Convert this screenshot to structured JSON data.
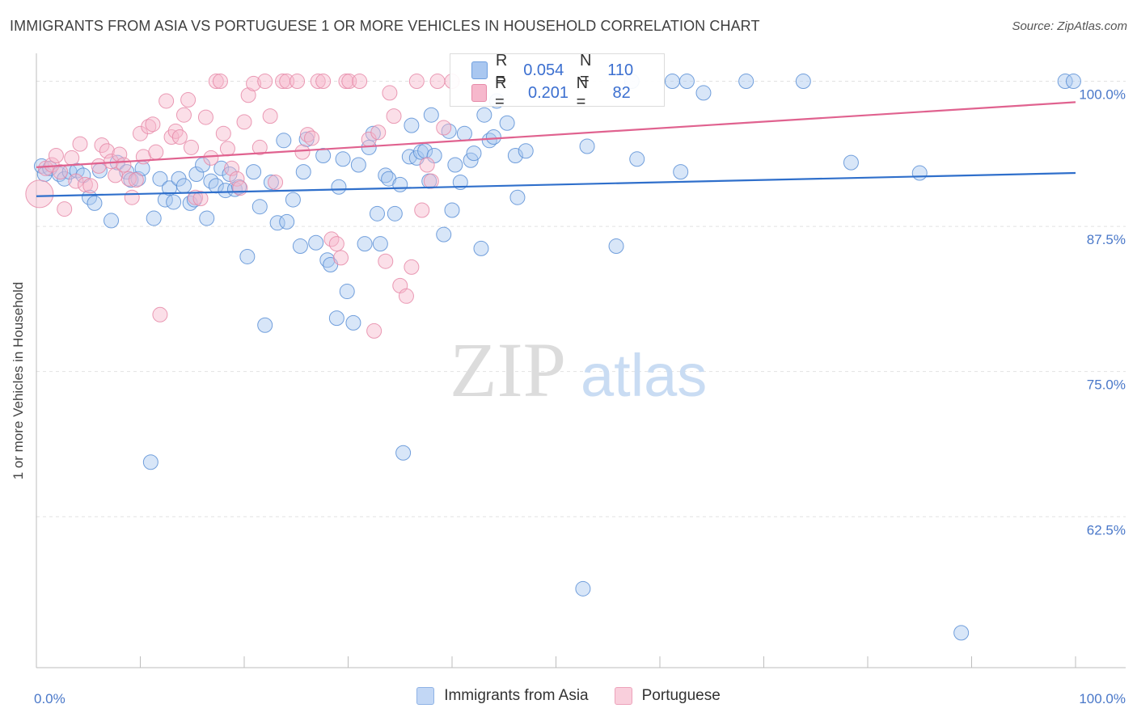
{
  "header": {
    "title": "IMMIGRANTS FROM ASIA VS PORTUGUESE 1 OR MORE VEHICLES IN HOUSEHOLD CORRELATION CHART",
    "source": "Source: ZipAtlas.com"
  },
  "watermark": {
    "zip": "ZIP",
    "atlas": "atlas"
  },
  "legend_stats": [
    {
      "r_label": "R =",
      "r_value": "0.054",
      "n_label": "N =",
      "n_value": "110",
      "color": "#a9c7f0"
    },
    {
      "r_label": "R =",
      "r_value": "0.201",
      "n_label": "N =",
      "n_value": "82",
      "color": "#f6b8cc"
    }
  ],
  "chart_data": {
    "type": "scatter",
    "title": "IMMIGRANTS FROM ASIA VS PORTUGUESE 1 OR MORE VEHICLES IN HOUSEHOLD CORRELATION CHART",
    "ylabel": "1 or more Vehicles in Household",
    "xlabel": "",
    "xlim": [
      0,
      100
    ],
    "ylim": [
      49.5,
      101.5
    ],
    "x_tick_labels": [
      "0.0%",
      "100.0%"
    ],
    "y_ticks": [
      62.5,
      75.0,
      87.5,
      100.0
    ],
    "y_tick_labels": [
      "62.5%",
      "75.0%",
      "87.5%",
      "100.0%"
    ],
    "grid": true,
    "legend_position": "bottom",
    "series": [
      {
        "name": "Immigrants from Asia",
        "color": "#a9c7f0",
        "edge": "#5b8fd6",
        "line_color": "#2f6fcb",
        "trend": [
          [
            0,
            90.1
          ],
          [
            100,
            92.1
          ]
        ],
        "points": [
          [
            0.5,
            92.7
          ],
          [
            0.8,
            92.0
          ],
          [
            1.3,
            92.5
          ],
          [
            2.2,
            92.0
          ],
          [
            2.7,
            91.6
          ],
          [
            3.2,
            92.2
          ],
          [
            3.9,
            92.3
          ],
          [
            4.5,
            91.9
          ],
          [
            5.1,
            90.0
          ],
          [
            5.6,
            89.5
          ],
          [
            6.1,
            92.3
          ],
          [
            7.2,
            88.0
          ],
          [
            7.8,
            93.0
          ],
          [
            8.7,
            92.2
          ],
          [
            9.1,
            91.5
          ],
          [
            9.8,
            91.6
          ],
          [
            10.2,
            92.5
          ],
          [
            11.0,
            67.2
          ],
          [
            11.3,
            88.2
          ],
          [
            11.9,
            91.6
          ],
          [
            12.4,
            89.8
          ],
          [
            12.8,
            90.8
          ],
          [
            13.2,
            89.6
          ],
          [
            13.7,
            91.6
          ],
          [
            14.2,
            91.0
          ],
          [
            14.8,
            89.5
          ],
          [
            15.2,
            89.8
          ],
          [
            15.4,
            92.0
          ],
          [
            16.0,
            92.8
          ],
          [
            16.4,
            88.2
          ],
          [
            16.8,
            91.4
          ],
          [
            17.3,
            91.0
          ],
          [
            17.8,
            92.5
          ],
          [
            18.2,
            90.6
          ],
          [
            18.6,
            92.0
          ],
          [
            19.1,
            90.7
          ],
          [
            19.5,
            90.9
          ],
          [
            20.3,
            84.9
          ],
          [
            20.9,
            92.2
          ],
          [
            21.5,
            89.2
          ],
          [
            22.0,
            79.0
          ],
          [
            22.6,
            91.3
          ],
          [
            23.2,
            87.8
          ],
          [
            23.8,
            94.9
          ],
          [
            24.1,
            87.9
          ],
          [
            24.7,
            89.8
          ],
          [
            25.4,
            85.8
          ],
          [
            25.7,
            92.2
          ],
          [
            26.0,
            95.0
          ],
          [
            26.9,
            86.1
          ],
          [
            27.6,
            93.6
          ],
          [
            28.0,
            84.6
          ],
          [
            28.3,
            84.2
          ],
          [
            28.9,
            79.6
          ],
          [
            29.1,
            90.9
          ],
          [
            29.5,
            93.3
          ],
          [
            29.9,
            81.9
          ],
          [
            30.5,
            79.2
          ],
          [
            31.0,
            92.8
          ],
          [
            31.6,
            86.0
          ],
          [
            32.0,
            94.3
          ],
          [
            32.4,
            95.5
          ],
          [
            32.8,
            88.6
          ],
          [
            33.1,
            86.0
          ],
          [
            33.6,
            91.9
          ],
          [
            33.9,
            91.6
          ],
          [
            34.5,
            88.6
          ],
          [
            35.0,
            91.1
          ],
          [
            35.3,
            68.0
          ],
          [
            35.9,
            93.5
          ],
          [
            36.1,
            96.2
          ],
          [
            36.6,
            93.4
          ],
          [
            37.0,
            93.9
          ],
          [
            37.4,
            94.0
          ],
          [
            37.8,
            91.4
          ],
          [
            38.0,
            97.1
          ],
          [
            38.3,
            93.6
          ],
          [
            39.2,
            86.8
          ],
          [
            39.7,
            95.7
          ],
          [
            40.0,
            88.9
          ],
          [
            40.3,
            92.8
          ],
          [
            40.8,
            91.3
          ],
          [
            41.2,
            95.5
          ],
          [
            41.8,
            93.2
          ],
          [
            42.1,
            93.8
          ],
          [
            42.8,
            85.6
          ],
          [
            43.1,
            97.1
          ],
          [
            43.6,
            94.9
          ],
          [
            44.0,
            95.2
          ],
          [
            44.3,
            98.3
          ],
          [
            45.3,
            96.4
          ],
          [
            46.1,
            93.6
          ],
          [
            46.3,
            90.0
          ],
          [
            47.1,
            94.0
          ],
          [
            52.6,
            56.3
          ],
          [
            53.0,
            94.4
          ],
          [
            55.8,
            85.8
          ],
          [
            57.3,
            100.0
          ],
          [
            57.8,
            93.3
          ],
          [
            61.2,
            100.0
          ],
          [
            62.0,
            92.2
          ],
          [
            62.6,
            100.0
          ],
          [
            64.2,
            99.0
          ],
          [
            68.3,
            100.0
          ],
          [
            73.8,
            100.0
          ],
          [
            78.4,
            93.0
          ],
          [
            85.0,
            92.1
          ],
          [
            89.0,
            52.5
          ],
          [
            99.0,
            100.0
          ],
          [
            99.8,
            100.0
          ]
        ]
      },
      {
        "name": "Portuguese",
        "color": "#f6b8cc",
        "edge": "#e68aa8",
        "line_color": "#e0628f",
        "trend": [
          [
            0,
            92.6
          ],
          [
            100,
            98.2
          ]
        ],
        "points": [
          [
            0.3,
            90.3
          ],
          [
            0.9,
            92.5
          ],
          [
            1.5,
            92.8
          ],
          [
            1.9,
            93.6
          ],
          [
            2.3,
            92.2
          ],
          [
            2.7,
            89.0
          ],
          [
            3.4,
            93.4
          ],
          [
            3.8,
            91.4
          ],
          [
            4.2,
            94.6
          ],
          [
            4.7,
            91.1
          ],
          [
            5.2,
            91.0
          ],
          [
            6.0,
            92.7
          ],
          [
            6.3,
            94.5
          ],
          [
            6.8,
            94.0
          ],
          [
            7.2,
            93.1
          ],
          [
            7.6,
            91.9
          ],
          [
            8.0,
            93.7
          ],
          [
            8.4,
            92.8
          ],
          [
            8.9,
            91.6
          ],
          [
            9.2,
            90.0
          ],
          [
            9.6,
            91.5
          ],
          [
            10.0,
            95.5
          ],
          [
            10.3,
            93.5
          ],
          [
            10.8,
            96.1
          ],
          [
            11.2,
            96.3
          ],
          [
            11.5,
            93.9
          ],
          [
            11.9,
            79.9
          ],
          [
            12.5,
            98.3
          ],
          [
            13.0,
            95.2
          ],
          [
            13.4,
            95.7
          ],
          [
            13.8,
            95.2
          ],
          [
            14.2,
            97.1
          ],
          [
            14.6,
            98.4
          ],
          [
            14.9,
            94.3
          ],
          [
            15.3,
            90.0
          ],
          [
            15.8,
            89.9
          ],
          [
            16.3,
            96.9
          ],
          [
            16.8,
            93.4
          ],
          [
            17.3,
            100.0
          ],
          [
            17.7,
            100.0
          ],
          [
            18.0,
            95.5
          ],
          [
            18.4,
            94.2
          ],
          [
            18.8,
            92.5
          ],
          [
            19.3,
            91.6
          ],
          [
            19.6,
            90.8
          ],
          [
            20.0,
            96.5
          ],
          [
            20.4,
            98.8
          ],
          [
            20.9,
            99.8
          ],
          [
            21.5,
            94.3
          ],
          [
            22.0,
            100.0
          ],
          [
            22.5,
            97.0
          ],
          [
            23.0,
            91.3
          ],
          [
            23.7,
            100.0
          ],
          [
            24.1,
            100.0
          ],
          [
            25.1,
            100.0
          ],
          [
            25.6,
            93.9
          ],
          [
            26.1,
            95.4
          ],
          [
            26.5,
            95.1
          ],
          [
            27.1,
            100.0
          ],
          [
            27.6,
            100.0
          ],
          [
            28.4,
            86.4
          ],
          [
            28.9,
            86.0
          ],
          [
            29.3,
            84.8
          ],
          [
            29.8,
            100.0
          ],
          [
            30.1,
            100.0
          ],
          [
            31.1,
            100.0
          ],
          [
            32.0,
            95.0
          ],
          [
            32.5,
            78.5
          ],
          [
            32.9,
            95.6
          ],
          [
            33.6,
            84.5
          ],
          [
            34.0,
            99.0
          ],
          [
            34.4,
            97.0
          ],
          [
            35.0,
            82.4
          ],
          [
            35.6,
            81.5
          ],
          [
            36.1,
            84.0
          ],
          [
            36.6,
            100.0
          ],
          [
            37.1,
            88.9
          ],
          [
            37.6,
            92.8
          ],
          [
            38.0,
            91.4
          ],
          [
            38.6,
            100.0
          ],
          [
            39.2,
            96.0
          ],
          [
            40.0,
            100.0
          ]
        ]
      }
    ]
  },
  "bottom_legend": [
    {
      "label": "Immigrants from Asia",
      "color": "#a9c7f0"
    },
    {
      "label": "Portuguese",
      "color": "#f6b8cc"
    }
  ]
}
